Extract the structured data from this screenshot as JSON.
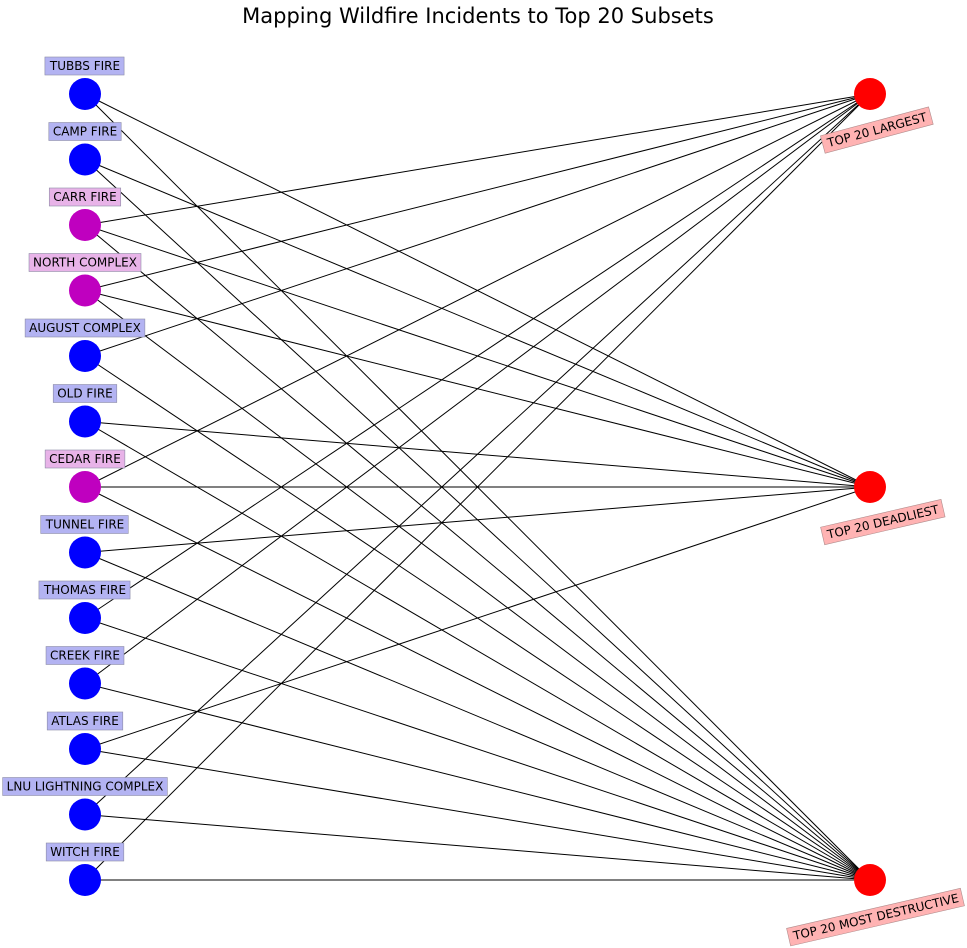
{
  "title": "Mapping Wildfire Incidents to Top 20 Subsets",
  "colors": {
    "left_blue": "#0000ff",
    "left_magenta": "#bf00bf",
    "right_red": "#ff0000",
    "label_blue_bg": "#b3b3f2",
    "label_magenta_bg": "#e8b3e8",
    "label_red_bg": "#ffb3b3",
    "edge": "#000000"
  },
  "subsets": [
    {
      "id": "largest",
      "label": "TOP 20 LARGEST"
    },
    {
      "id": "deadliest",
      "label": "TOP 20 DEADLIEST"
    },
    {
      "id": "destructive",
      "label": "TOP 20 MOST DESTRUCTIVE"
    }
  ],
  "fires": [
    {
      "label": "TUBBS FIRE",
      "color": "blue",
      "subsets": [
        "deadliest",
        "destructive"
      ]
    },
    {
      "label": "CAMP FIRE",
      "color": "blue",
      "subsets": [
        "deadliest",
        "destructive"
      ]
    },
    {
      "label": "CARR FIRE",
      "color": "magenta",
      "subsets": [
        "largest",
        "deadliest",
        "destructive"
      ]
    },
    {
      "label": "NORTH COMPLEX",
      "color": "magenta",
      "subsets": [
        "largest",
        "deadliest",
        "destructive"
      ]
    },
    {
      "label": "AUGUST COMPLEX",
      "color": "blue",
      "subsets": [
        "largest",
        "destructive"
      ]
    },
    {
      "label": "OLD FIRE",
      "color": "blue",
      "subsets": [
        "deadliest",
        "destructive"
      ]
    },
    {
      "label": "CEDAR FIRE",
      "color": "magenta",
      "subsets": [
        "largest",
        "deadliest",
        "destructive"
      ]
    },
    {
      "label": "TUNNEL FIRE",
      "color": "blue",
      "subsets": [
        "deadliest",
        "destructive"
      ]
    },
    {
      "label": "THOMAS FIRE",
      "color": "blue",
      "subsets": [
        "largest",
        "destructive"
      ]
    },
    {
      "label": "CREEK FIRE",
      "color": "blue",
      "subsets": [
        "largest",
        "destructive"
      ]
    },
    {
      "label": "ATLAS FIRE",
      "color": "blue",
      "subsets": [
        "deadliest",
        "destructive"
      ]
    },
    {
      "label": "LNU LIGHTNING COMPLEX",
      "color": "blue",
      "subsets": [
        "largest",
        "destructive"
      ]
    },
    {
      "label": "WITCH FIRE",
      "color": "blue",
      "subsets": [
        "largest",
        "destructive"
      ]
    }
  ]
}
